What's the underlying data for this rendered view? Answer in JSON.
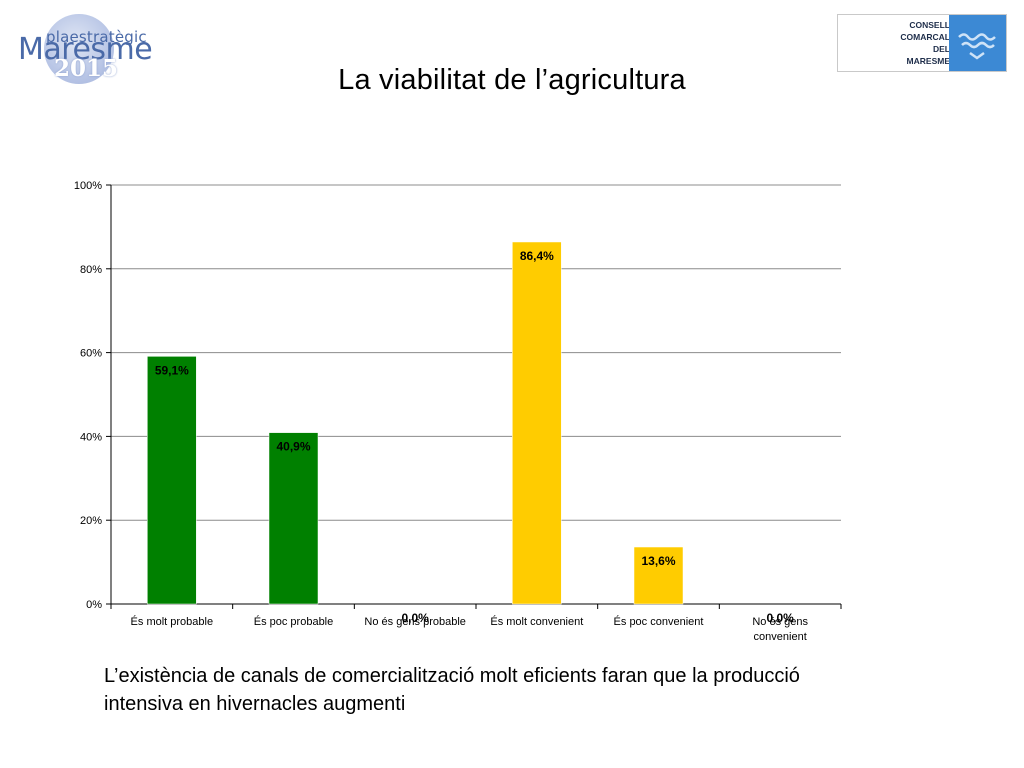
{
  "header": {
    "title": "La viabilitat de l’agricultura",
    "logo_left": {
      "line1": "plaestratègic",
      "line2": "Maresme",
      "line3": "2015"
    },
    "logo_right": {
      "lines": [
        "CONSELL",
        "COMARCAL",
        "DEL",
        "MARESME"
      ]
    }
  },
  "chart_data": {
    "type": "bar",
    "categories": [
      [
        "És molt probable"
      ],
      [
        "És poc probable"
      ],
      [
        "No és gens probable"
      ],
      [
        "És molt convenient"
      ],
      [
        "És poc convenient"
      ],
      [
        "No és gens",
        "convenient"
      ]
    ],
    "values": [
      59.1,
      40.9,
      0.0,
      86.4,
      13.6,
      0.0
    ],
    "data_labels": [
      "59,1%",
      "40,9%",
      "0,0%",
      "86,4%",
      "13,6%",
      "0,0%"
    ],
    "bar_colors": [
      "#008000",
      "#008000",
      "#008000",
      "#FFCC00",
      "#FFCC00",
      "#FFCC00"
    ],
    "ylim": [
      0,
      100
    ],
    "yticks": [
      "0%",
      "20%",
      "40%",
      "60%",
      "80%",
      "100%"
    ],
    "grid": true,
    "title": "",
    "xlabel": "",
    "ylabel": ""
  },
  "caption": "L’existència de canals de comercialització molt eficients faran que la producció intensiva en hivernacles augmenti"
}
